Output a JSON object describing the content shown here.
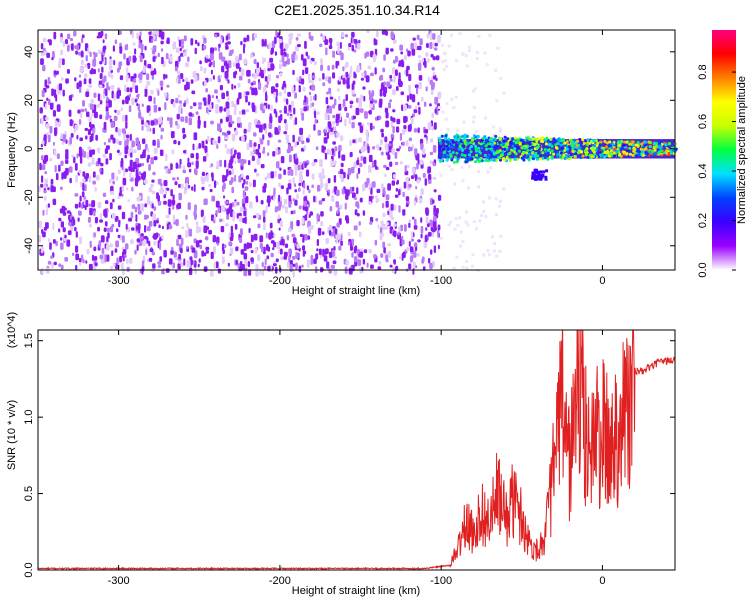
{
  "title": "C2E1.2025.351.10.34.R14",
  "chart_data": [
    {
      "type": "heatmap",
      "title": "C2E1.2025.351.10.34.R14",
      "xlabel": "Height of straight line (km)",
      "ylabel": "Frequency (Hz)",
      "xlim": [
        -350,
        45
      ],
      "ylim": [
        -50,
        49
      ],
      "xticks": [
        -300,
        -200,
        -100,
        0
      ],
      "yticks": [
        -40,
        -20,
        0,
        20,
        40
      ],
      "colorbar": {
        "label": "Normalized spectral amplitude",
        "lim": [
          0.0,
          0.97
        ],
        "ticks": [
          0.0,
          0.2,
          0.4,
          0.6,
          0.8
        ],
        "colormap": [
          "#ffffff",
          "#9b00ff",
          "#3a00ff",
          "#0040ff",
          "#00e0ff",
          "#00ff40",
          "#c8ff00",
          "#ffff00",
          "#ff8000",
          "#ff0000",
          "#ff0080"
        ]
      },
      "regions": [
        {
          "name": "noise",
          "x_range": [
            -350,
            -102
          ],
          "freq_range": [
            -50,
            49
          ],
          "amplitude": 0.05
        },
        {
          "name": "signal",
          "x_range": [
            -102,
            45
          ],
          "center_freq": 0,
          "spread_hz": 6,
          "amplitude_range": [
            0.2,
            0.97
          ]
        },
        {
          "name": "spur",
          "x_range": [
            -45,
            -35
          ],
          "center_freq": -10,
          "amplitude": 0.2
        }
      ]
    },
    {
      "type": "line",
      "xlabel": "Height of straight line (km)",
      "ylabel": "SNR (10 * v/v)",
      "y_multiplier": "(x10^4)",
      "xlim": [
        -350,
        45
      ],
      "ylim": [
        0.0,
        1.57
      ],
      "xticks": [
        -300,
        -200,
        -100,
        0
      ],
      "yticks": [
        0.0,
        0.5,
        1.0,
        1.5
      ],
      "color": "#e02020",
      "series": [
        {
          "x": [
            -350,
            -300,
            -250,
            -200,
            -150,
            -110,
            -95,
            -90,
            -85,
            -80,
            -75,
            -70,
            -65,
            -60,
            -55,
            -50,
            -45,
            -40,
            -35,
            -30,
            -25,
            -20,
            -15,
            -10,
            -5,
            0,
            5,
            10,
            15,
            20,
            25,
            30,
            35,
            40,
            45
          ],
          "y": [
            0.01,
            0.01,
            0.01,
            0.01,
            0.01,
            0.01,
            0.03,
            0.15,
            0.35,
            0.28,
            0.45,
            0.35,
            0.6,
            0.4,
            0.55,
            0.4,
            0.2,
            0.15,
            0.3,
            0.8,
            1.3,
            0.8,
            1.5,
            1.0,
            1.0,
            1.05,
            0.9,
            1.15,
            1.25,
            1.3,
            1.3,
            1.33,
            1.36,
            1.37,
            1.37
          ]
        }
      ]
    }
  ]
}
